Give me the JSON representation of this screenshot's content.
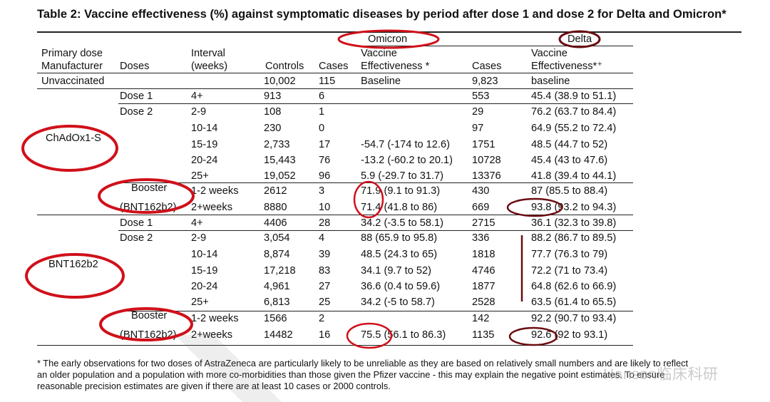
{
  "title": "Table 2: Vaccine effectiveness (%) against symptomatic diseases by period after dose 1 and dose 2 for Delta and Omicron*",
  "group_headers": {
    "omicron": "Omicron",
    "delta": "Delta"
  },
  "columns": {
    "manufacturer": [
      "Primary dose",
      "Manufacturer"
    ],
    "doses": "Doses",
    "interval": [
      "Interval",
      "(weeks)"
    ],
    "controls": "Controls",
    "omicron_cases": "Cases",
    "omicron_ve": [
      "Vaccine",
      "Effectiveness *"
    ],
    "delta_cases": "Cases",
    "delta_ve": [
      "Vaccine",
      "Effectiveness*⁺"
    ]
  },
  "rows": [
    {
      "manufacturer": "Unvaccinated",
      "doses": "",
      "interval": "",
      "controls": "10,002",
      "omicron_cases": "115",
      "omicron_ve": "Baseline",
      "delta_cases": "9,823",
      "delta_ve": "baseline"
    },
    {
      "manufacturer": "",
      "doses": "Dose 1",
      "interval": "4+",
      "controls": "913",
      "omicron_cases": "6",
      "omicron_ve": "",
      "delta_cases": "553",
      "delta_ve": "45.4 (38.9 to 51.1)"
    },
    {
      "manufacturer": "",
      "doses": "Dose 2",
      "interval": "2-9",
      "controls": "108",
      "omicron_cases": "1",
      "omicron_ve": "",
      "delta_cases": "29",
      "delta_ve": "76.2 (63.7 to 84.4)"
    },
    {
      "manufacturer": "",
      "doses": "",
      "interval": "10-14",
      "controls": "230",
      "omicron_cases": "0",
      "omicron_ve": "",
      "delta_cases": "97",
      "delta_ve": "64.9 (55.2 to 72.4)"
    },
    {
      "manufacturer": "ChAdOx1-S",
      "doses": "",
      "interval": "15-19",
      "controls": "2,733",
      "omicron_cases": "17",
      "omicron_ve": "-54.7 (-174 to 12.6)",
      "delta_cases": "1751",
      "delta_ve": "48.5 (44.7 to 52)"
    },
    {
      "manufacturer": "",
      "doses": "",
      "interval": "20-24",
      "controls": "15,443",
      "omicron_cases": "76",
      "omicron_ve": "-13.2 (-60.2 to 20.1)",
      "delta_cases": "10728",
      "delta_ve": "45.4 (43 to 47.6)"
    },
    {
      "manufacturer": "",
      "doses": "",
      "interval": "25+",
      "controls": "19,052",
      "omicron_cases": "96",
      "omicron_ve": "5.9 (-29.7 to 31.7)",
      "delta_cases": "13376",
      "delta_ve": "41.8 (39.4 to 44.1)"
    },
    {
      "manufacturer": "",
      "doses": "Booster",
      "interval": "1-2 weeks",
      "controls": "2612",
      "omicron_cases": "3",
      "omicron_ve": "71.9 (9.1 to 91.3)",
      "delta_cases": "430",
      "delta_ve": "87 (85.5 to 88.4)"
    },
    {
      "manufacturer": "",
      "doses": "(BNT162b2)",
      "interval": "2+weeks",
      "controls": "8880",
      "omicron_cases": "10",
      "omicron_ve": "71.4 (41.8 to 86)",
      "delta_cases": "669",
      "delta_ve": "93.8 (93.2 to 94.3)"
    },
    {
      "manufacturer": "",
      "doses": "Dose 1",
      "interval": "4+",
      "controls": "4406",
      "omicron_cases": "28",
      "omicron_ve": "34.2 (-3.5 to 58.1)",
      "delta_cases": "2715",
      "delta_ve": "36.1 (32.3 to 39.8)"
    },
    {
      "manufacturer": "",
      "doses": "Dose 2",
      "interval": "2-9",
      "controls": "3,054",
      "omicron_cases": "4",
      "omicron_ve": "88 (65.9 to 95.8)",
      "delta_cases": "336",
      "delta_ve": "88.2 (86.7 to 89.5)"
    },
    {
      "manufacturer": "",
      "doses": "",
      "interval": "10-14",
      "controls": "8,874",
      "omicron_cases": "39",
      "omicron_ve": "48.5 (24.3 to 65)",
      "delta_cases": "1818",
      "delta_ve": "77.7 (76.3 to 79)"
    },
    {
      "manufacturer": "BNT162b2",
      "doses": "",
      "interval": "15-19",
      "controls": "17,218",
      "omicron_cases": "83",
      "omicron_ve": "34.1 (9.7 to 52)",
      "delta_cases": "4746",
      "delta_ve": "72.2 (71 to 73.4)"
    },
    {
      "manufacturer": "",
      "doses": "",
      "interval": "20-24",
      "controls": "4,961",
      "omicron_cases": "27",
      "omicron_ve": "36.6 (0.4 to 59.6)",
      "delta_cases": "1877",
      "delta_ve": "64.8 (62.6 to 66.9)"
    },
    {
      "manufacturer": "",
      "doses": "",
      "interval": "25+",
      "controls": "6,813",
      "omicron_cases": "25",
      "omicron_ve": "34.2 (-5 to 58.7)",
      "delta_cases": "2528",
      "delta_ve": "63.5 (61.4 to 65.5)"
    },
    {
      "manufacturer": "",
      "doses": "Booster",
      "interval": "1-2 weeks",
      "controls": "1566",
      "omicron_cases": "2",
      "omicron_ve": "",
      "delta_cases": "142",
      "delta_ve": "92.2 (90.7 to 93.4)"
    },
    {
      "manufacturer": "",
      "doses": "(BNT162b2)",
      "interval": "2+weeks",
      "controls": "14482",
      "omicron_cases": "16",
      "omicron_ve": "75.5 (56.1 to 86.3)",
      "delta_cases": "1135",
      "delta_ve": "92.6 (92 to 93.1)"
    }
  ],
  "footnote": [
    "* The early observations for two doses of AstraZeneca are particularly likely to be unreliable as they are based on relatively small numbers and are likely to reflect",
    "an older population and a population with more co-morbidities than those given the Pfizer vaccine - this may explain the negative point estimates.  To ensure",
    "reasonable precision estimates are given if there are at least 10 cases or 2000 controls."
  ],
  "watermark": "Hanson临床科研",
  "annotation_color": "#d0101a",
  "annotation_dark_color": "#6a0d12"
}
